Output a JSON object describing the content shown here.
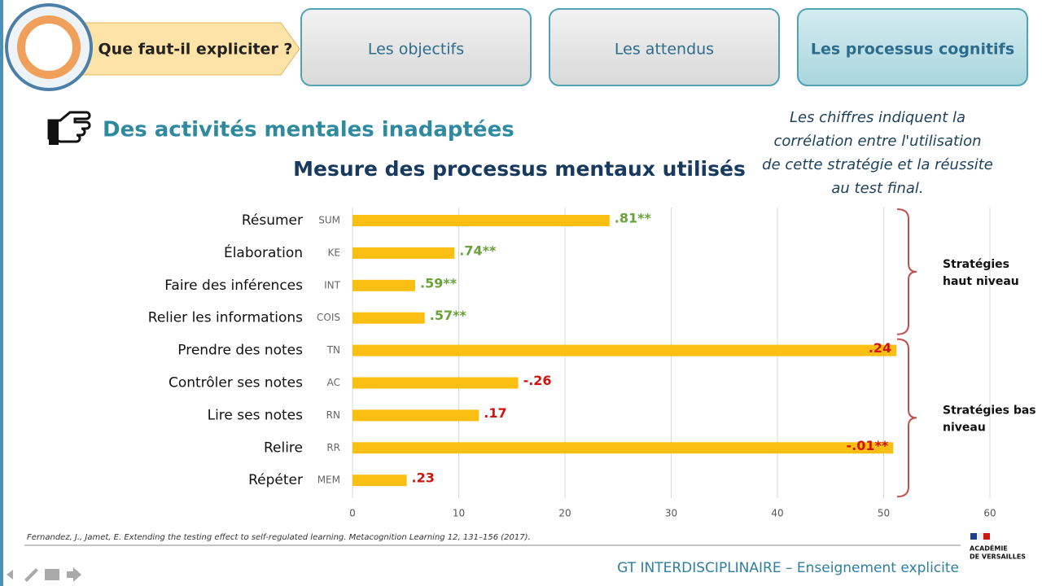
{
  "header": {
    "intro": "Que faut-il expliciter ?",
    "tabs": [
      "Les objectifs",
      "Les attendus",
      "Les processus cognitifs"
    ]
  },
  "heading": "Des activités mentales inadaptées",
  "note": [
    "Les chiffres indiquent la",
    "corrélation entre l'utilisation",
    "de cette stratégie et la réussite",
    "au test final."
  ],
  "chart_data": {
    "type": "hbar",
    "title": "Mesure des processus mentaux utilisés",
    "categories": [
      "Résumer",
      "Élaboration",
      "Faire des inférences",
      "Relier les informations",
      "Prendre des notes",
      "Contrôler ses notes",
      "Lire ses notes",
      "Relire",
      "Répéter"
    ],
    "codes": [
      "SUM",
      "KE",
      "INT",
      "COIS",
      "TN",
      "AC",
      "RN",
      "RR",
      "MEM"
    ],
    "values": [
      24.2,
      9.6,
      5.9,
      6.8,
      51.2,
      15.6,
      11.9,
      50.9,
      5.1
    ],
    "color": "#fbbf14",
    "correlations": [
      ".81**",
      ".74**",
      ".59**",
      ".57**",
      ".24",
      "-.26",
      ".17",
      "-.01**",
      ".23"
    ],
    "correlation_colors": [
      "#6aa23a",
      "#6aa23a",
      "#6aa23a",
      "#6aa23a",
      "#d0140f",
      "#d0140f",
      "#d0140f",
      "#d0140f",
      "#d0140f"
    ],
    "xlim": [
      0,
      60
    ],
    "xticks": [
      0,
      10,
      20,
      30,
      40,
      50,
      60
    ],
    "grid": true,
    "groups": [
      {
        "lines": [
          "Stratégies",
          "haut niveau"
        ],
        "from": 0,
        "to": 3
      },
      {
        "lines": [
          "Stratégies bas",
          "niveau"
        ],
        "from": 4,
        "to": 8
      }
    ]
  },
  "citation": "Fernandez, J., Jamet, E. Extending the testing effect to self-regulated learning. Metacognition Learning 12, 131–156 (2017).",
  "footer": "GT INTERDISCIPLINAIRE – Enseignement explicite",
  "logo": [
    "ACADÉMIE",
    "DE VERSAILLES"
  ]
}
